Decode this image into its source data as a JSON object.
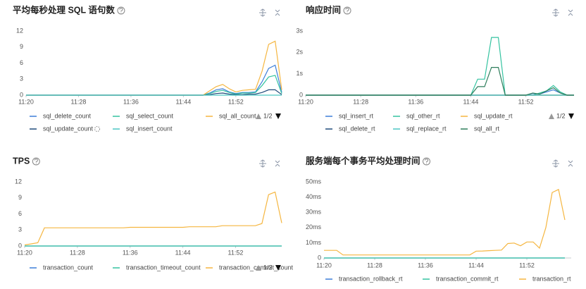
{
  "chart_data": [
    {
      "type": "line",
      "title": "平均每秒处理 SQL 语句数",
      "categories": [
        "11:20",
        null,
        null,
        null,
        null,
        null,
        null,
        null,
        "11:28",
        null,
        null,
        null,
        null,
        null,
        null,
        null,
        "11:36",
        null,
        null,
        null,
        null,
        null,
        null,
        null,
        "11:44",
        null,
        null,
        null,
        null,
        null,
        null,
        null,
        "11:52",
        null,
        null,
        null,
        null,
        null,
        null,
        null
      ],
      "ylim": [
        0,
        12
      ],
      "yticks": [
        0,
        3,
        6,
        9,
        12
      ],
      "grid": false,
      "legend_page": "1/2",
      "series": [
        {
          "name": "sql_delete_count",
          "color": "#3d7ed8",
          "values": [
            0,
            0,
            0,
            0,
            0,
            0,
            0,
            0,
            0,
            0,
            0,
            0,
            0,
            0,
            0,
            0,
            0,
            0,
            0,
            0,
            0,
            0,
            0,
            0,
            0,
            0,
            0,
            0,
            0.4,
            1.0,
            1.2,
            0.6,
            0.3,
            0.5,
            0.5,
            0.6,
            2.5,
            5.0,
            5.6,
            0.5
          ]
        },
        {
          "name": "sql_select_count",
          "color": "#34c3a0",
          "values": [
            0,
            0,
            0,
            0,
            0,
            0,
            0,
            0,
            0,
            0,
            0,
            0,
            0,
            0,
            0,
            0,
            0,
            0,
            0,
            0,
            0,
            0,
            0,
            0,
            0,
            0,
            0,
            0,
            0.3,
            0.7,
            0.9,
            0.5,
            0.2,
            0.4,
            0.4,
            0.5,
            1.8,
            3.4,
            3.7,
            0.3
          ]
        },
        {
          "name": "sql_all_count",
          "color": "#f5b640",
          "values": [
            0,
            0,
            0,
            0,
            0,
            0,
            0,
            0,
            0,
            0,
            0,
            0,
            0,
            0,
            0,
            0,
            0,
            0,
            0,
            0,
            0,
            0,
            0,
            0,
            0,
            0,
            0,
            0,
            0.8,
            1.6,
            2.0,
            1.2,
            0.6,
            0.9,
            1.0,
            1.1,
            4.5,
            9.5,
            10.1,
            1.0
          ]
        },
        {
          "name": "sql_update_count",
          "color": "#1f4a7a",
          "values": [
            0,
            0,
            0,
            0,
            0,
            0,
            0,
            0,
            0,
            0,
            0,
            0,
            0,
            0,
            0,
            0,
            0,
            0,
            0,
            0,
            0,
            0,
            0,
            0,
            0,
            0,
            0,
            0,
            0.1,
            0.3,
            0.4,
            0.2,
            0.1,
            0.1,
            0.2,
            0.2,
            0.5,
            1.0,
            1.0,
            0.1
          ]
        },
        {
          "name": "sql_insert_count",
          "color": "#4bc6c2",
          "values": [
            0,
            0,
            0,
            0,
            0,
            0,
            0,
            0,
            0,
            0,
            0,
            0,
            0,
            0,
            0,
            0,
            0,
            0,
            0,
            0,
            0,
            0,
            0,
            0,
            0,
            0,
            0,
            0,
            0,
            0,
            0,
            0,
            0,
            0,
            0,
            0,
            0,
            0,
            0,
            0
          ]
        }
      ]
    },
    {
      "type": "line",
      "title": "响应时间",
      "categories": [
        "11:20",
        null,
        null,
        null,
        null,
        null,
        null,
        null,
        "11:28",
        null,
        null,
        null,
        null,
        null,
        null,
        null,
        "11:36",
        null,
        null,
        null,
        null,
        null,
        null,
        null,
        "11:44",
        null,
        null,
        null,
        null,
        null,
        null,
        null,
        "11:52",
        null,
        null,
        null,
        null,
        null,
        null,
        null
      ],
      "ylim": [
        0,
        3
      ],
      "yticks": [
        0,
        {
          "value": 1,
          "label": "1s"
        },
        {
          "value": 2,
          "label": "2s"
        },
        {
          "value": 3,
          "label": "3s"
        }
      ],
      "grid": false,
      "legend_page": "1/2",
      "series": [
        {
          "name": "sql_insert_rt",
          "color": "#3d7ed8",
          "values": [
            0,
            0,
            0,
            0,
            0,
            0,
            0,
            0,
            0,
            0,
            0,
            0,
            0,
            0,
            0,
            0,
            0,
            0,
            0,
            0,
            0,
            0,
            0,
            0,
            0,
            0,
            0,
            0,
            0,
            0,
            0,
            0,
            0,
            0.08,
            0.05,
            0.15,
            0.25,
            0.1,
            0,
            0
          ]
        },
        {
          "name": "sql_other_rt",
          "color": "#34c3a0",
          "values": [
            0,
            0,
            0,
            0,
            0,
            0,
            0,
            0,
            0,
            0,
            0,
            0,
            0,
            0,
            0,
            0,
            0,
            0,
            0,
            0,
            0,
            0,
            0,
            0,
            0,
            0.75,
            0.75,
            2.7,
            2.7,
            0,
            0,
            0,
            0,
            0,
            0.1,
            0.2,
            0.45,
            0.15,
            0,
            0
          ]
        },
        {
          "name": "sql_update_rt",
          "color": "#f5b640",
          "values": [
            0,
            0,
            0,
            0,
            0,
            0,
            0,
            0,
            0,
            0,
            0,
            0,
            0,
            0,
            0,
            0,
            0,
            0,
            0,
            0,
            0,
            0,
            0,
            0,
            0,
            0,
            0,
            0,
            0,
            0,
            0,
            0,
            0,
            0,
            0,
            0,
            0,
            0,
            0,
            0
          ]
        },
        {
          "name": "sql_delete_rt",
          "color": "#1f4a7a",
          "values": [
            0,
            0,
            0,
            0,
            0,
            0,
            0,
            0,
            0,
            0,
            0,
            0,
            0,
            0,
            0,
            0,
            0,
            0,
            0,
            0,
            0,
            0,
            0,
            0,
            0,
            0,
            0,
            0,
            0,
            0,
            0,
            0,
            0,
            0,
            0,
            0,
            0,
            0,
            0,
            0
          ]
        },
        {
          "name": "sql_replace_rt",
          "color": "#4bc6c2",
          "values": [
            0,
            0,
            0,
            0,
            0,
            0,
            0,
            0,
            0,
            0,
            0,
            0,
            0,
            0,
            0,
            0,
            0,
            0,
            0,
            0,
            0,
            0,
            0,
            0,
            0,
            0,
            0,
            0,
            0,
            0,
            0,
            0,
            0,
            0,
            0,
            0,
            0,
            0,
            0,
            0
          ]
        },
        {
          "name": "sql_all_rt",
          "color": "#2e7d5b",
          "values": [
            0,
            0,
            0,
            0,
            0,
            0,
            0,
            0,
            0,
            0,
            0,
            0,
            0,
            0,
            0,
            0,
            0,
            0,
            0,
            0,
            0,
            0,
            0,
            0,
            0,
            0.4,
            0.4,
            1.3,
            1.3,
            0,
            0,
            0,
            0,
            0.1,
            0.05,
            0.2,
            0.35,
            0.1,
            0,
            0
          ]
        }
      ]
    },
    {
      "type": "line",
      "title": "TPS",
      "categories": [
        "11:20",
        null,
        null,
        null,
        null,
        null,
        null,
        null,
        "11:28",
        null,
        null,
        null,
        null,
        null,
        null,
        null,
        "11:36",
        null,
        null,
        null,
        null,
        null,
        null,
        null,
        "11:44",
        null,
        null,
        null,
        null,
        null,
        null,
        null,
        "11:52",
        null,
        null,
        null,
        null,
        null,
        null,
        null
      ],
      "ylim": [
        0,
        12
      ],
      "yticks": [
        0,
        3,
        6,
        9,
        12
      ],
      "grid": false,
      "legend_page": "1/2",
      "series": [
        {
          "name": "transaction_count",
          "color": "#3d7ed8",
          "values": [
            0,
            0,
            0,
            0,
            0,
            0,
            0,
            0,
            0,
            0,
            0,
            0,
            0,
            0,
            0,
            0,
            0,
            0,
            0,
            0,
            0,
            0,
            0,
            0,
            0,
            0,
            0,
            0,
            0,
            0,
            0,
            0,
            0,
            0,
            0,
            0,
            0,
            0,
            0,
            0
          ]
        },
        {
          "name": "transaction_timeout_count",
          "color": "#34c3a0",
          "values": [
            0,
            0,
            0,
            0,
            0,
            0,
            0,
            0,
            0,
            0,
            0,
            0,
            0,
            0,
            0,
            0,
            0,
            0,
            0,
            0,
            0,
            0,
            0,
            0,
            0,
            0,
            0,
            0,
            0,
            0,
            0,
            0,
            0,
            0,
            0,
            0,
            0,
            0,
            0,
            0
          ]
        },
        {
          "name": "transaction_commit_count",
          "color": "#f5b640",
          "values": [
            0.2,
            0.4,
            0.6,
            3.4,
            3.4,
            3.4,
            3.4,
            3.4,
            3.4,
            3.4,
            3.4,
            3.4,
            3.4,
            3.4,
            3.4,
            3.4,
            3.5,
            3.5,
            3.5,
            3.5,
            3.5,
            3.5,
            3.5,
            3.5,
            3.5,
            3.6,
            3.6,
            3.6,
            3.6,
            3.6,
            3.8,
            3.8,
            3.8,
            3.8,
            3.8,
            3.8,
            4.2,
            9.6,
            10.1,
            4.3
          ]
        }
      ]
    },
    {
      "type": "line",
      "title": "服务端每个事务平均处理时间",
      "categories": [
        "11:20",
        null,
        null,
        null,
        null,
        null,
        null,
        null,
        "11:28",
        null,
        null,
        null,
        null,
        null,
        null,
        null,
        "11:36",
        null,
        null,
        null,
        null,
        null,
        null,
        null,
        "11:44",
        null,
        null,
        null,
        null,
        null,
        null,
        null,
        "11:52",
        null,
        null,
        null,
        null,
        null,
        null,
        null
      ],
      "ylim": [
        0,
        50
      ],
      "yticks": [
        0,
        {
          "value": 10,
          "label": "10ms"
        },
        {
          "value": 20,
          "label": "20ms"
        },
        {
          "value": 30,
          "label": "30ms"
        },
        {
          "value": 40,
          "label": "40ms"
        },
        {
          "value": 50,
          "label": "50ms"
        }
      ],
      "grid": false,
      "series": [
        {
          "name": "transaction_rollback_rt",
          "color": "#3d7ed8",
          "values": [
            0,
            0,
            0,
            0,
            0,
            0,
            0,
            0,
            0,
            0,
            0,
            0,
            0,
            0,
            0,
            0,
            0,
            0,
            0,
            0,
            0,
            0,
            0,
            0,
            0,
            0,
            0,
            0,
            0,
            0,
            0,
            0,
            0,
            0,
            0,
            0,
            0,
            0,
            0,
            null
          ]
        },
        {
          "name": "transaction_commit_rt",
          "color": "#34c3a0",
          "values": [
            0,
            0,
            0,
            0,
            0,
            0,
            0,
            0,
            0,
            0,
            0,
            0,
            0,
            0,
            0,
            0,
            0,
            0,
            0,
            0,
            0,
            0,
            0,
            0,
            0,
            0,
            0,
            0,
            0,
            0,
            0,
            0,
            0,
            0,
            0,
            0,
            0,
            0,
            0,
            null
          ]
        },
        {
          "name": "transaction_rt",
          "color": "#f5b640",
          "values": [
            5,
            5,
            5,
            2,
            2,
            2,
            2,
            2,
            2,
            2,
            2,
            2,
            2,
            2,
            2,
            2,
            2,
            2,
            2,
            2,
            2,
            2,
            2,
            2,
            4.5,
            4.6,
            4.8,
            5,
            5.2,
            9.5,
            9.8,
            8,
            10.5,
            10.5,
            6.5,
            20,
            43,
            45,
            25,
            null
          ]
        }
      ]
    }
  ]
}
